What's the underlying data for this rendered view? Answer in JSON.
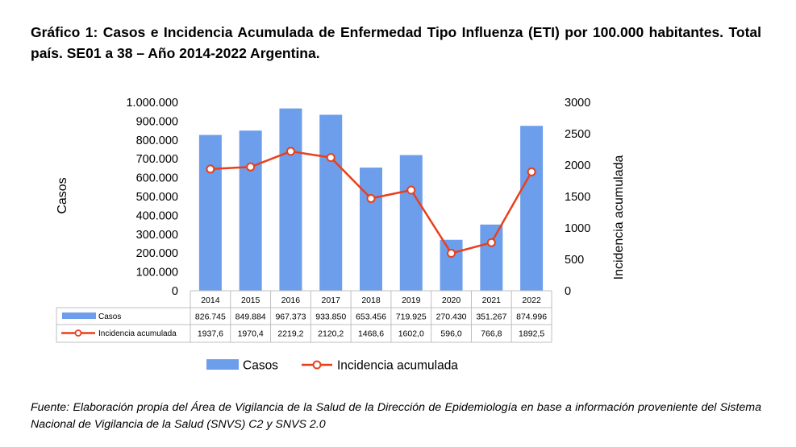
{
  "title": "Gráfico 1: Casos e Incidencia Acumulada de Enfermedad Tipo Influenza (ETI) por 100.000 habitantes. Total país. SE01 a 38 – Año 2014-2022 Argentina.",
  "source": "Fuente: Elaboración propia del Área de Vigilancia de la Salud de la Dirección de Epidemiología en base a información proveniente del Sistema Nacional de Vigilancia de la Salud (SNVS) C2 y SNVS 2.0",
  "colors": {
    "bar": "#6d9eeb",
    "line": "#e8401c",
    "marker_fill": "#ffffff",
    "grid": "#bfbfbf"
  },
  "chart_data": {
    "type": "bar",
    "categories": [
      "2014",
      "2015",
      "2016",
      "2017",
      "2018",
      "2019",
      "2020",
      "2021",
      "2022"
    ],
    "ylabel": "Casos",
    "y2label": "Incidencia acumulada",
    "ylim": [
      0,
      1000000
    ],
    "y2lim": [
      0,
      3000
    ],
    "y_ticks": [
      "0",
      "100.000",
      "200.000",
      "300.000",
      "400.000",
      "500.000",
      "600.000",
      "700.000",
      "800.000",
      "900.000",
      "1.000.000"
    ],
    "y2_ticks": [
      "0",
      "500",
      "1000",
      "1500",
      "2000",
      "2500",
      "3000"
    ],
    "grid": false,
    "legend_position": "bottom",
    "series": [
      {
        "name": "Casos",
        "type": "bar",
        "axis": "left",
        "values": [
          826745,
          849884,
          967373,
          933850,
          653456,
          719925,
          270430,
          351267,
          874996
        ],
        "labels": [
          "826.745",
          "849.884",
          "967.373",
          "933.850",
          "653.456",
          "719.925",
          "270.430",
          "351.267",
          "874.996"
        ]
      },
      {
        "name": "Incidencia acumulada",
        "type": "line",
        "axis": "right",
        "values": [
          1937.6,
          1970.4,
          2219.2,
          2120.2,
          1468.6,
          1602.0,
          596.0,
          766.8,
          1892.5
        ],
        "labels": [
          "1937,6",
          "1970,4",
          "2219,2",
          "2120,2",
          "1468,6",
          "1602,0",
          "596,0",
          "766,8",
          "1892,5"
        ]
      }
    ]
  }
}
